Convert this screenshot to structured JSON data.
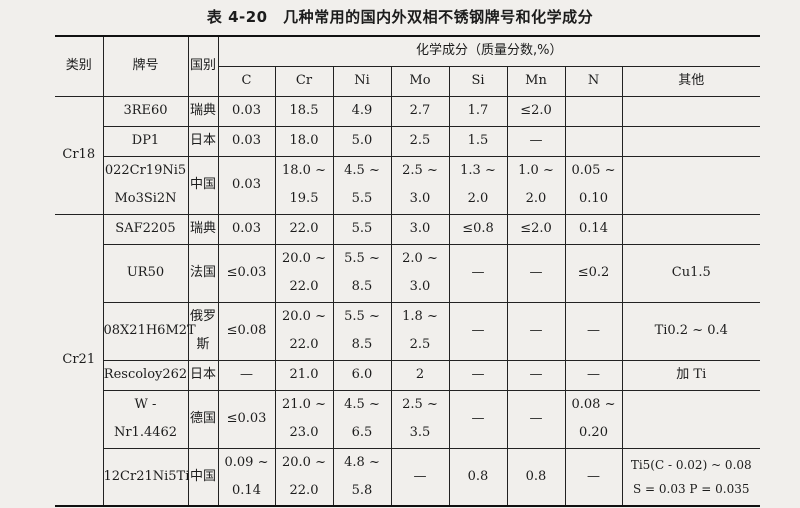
{
  "title": "表 4-20　几种常用的国内外双相不锈钢牌号和化学成分",
  "headers": {
    "category": "类别",
    "grade": "牌号",
    "country": "国别",
    "composition": "化学成分（质量分数,%）",
    "elements": [
      "C",
      "Cr",
      "Ni",
      "Mo",
      "Si",
      "Mn",
      "N",
      "其他"
    ]
  },
  "groups": [
    {
      "category": "Cr18",
      "rows": [
        {
          "grade": [
            "3RE60"
          ],
          "country": [
            "瑞典"
          ],
          "C": [
            "0.03"
          ],
          "Cr": [
            "18.5"
          ],
          "Ni": [
            "4.9"
          ],
          "Mo": [
            "2.7"
          ],
          "Si": [
            "1.7"
          ],
          "Mn": [
            "≤2.0"
          ],
          "N": [
            ""
          ],
          "other": [
            ""
          ]
        },
        {
          "grade": [
            "DP1"
          ],
          "country": [
            "日本"
          ],
          "C": [
            "0.03"
          ],
          "Cr": [
            "18.0"
          ],
          "Ni": [
            "5.0"
          ],
          "Mo": [
            "2.5"
          ],
          "Si": [
            "1.5"
          ],
          "Mn": [
            "—"
          ],
          "N": [
            ""
          ],
          "other": [
            ""
          ]
        },
        {
          "grade": [
            "022Cr19Ni5",
            "Mo3Si2N"
          ],
          "country": [
            "中国"
          ],
          "C": [
            "0.03"
          ],
          "Cr": [
            "18.0 ~",
            "19.5"
          ],
          "Ni": [
            "4.5 ~",
            "5.5"
          ],
          "Mo": [
            "2.5 ~",
            "3.0"
          ],
          "Si": [
            "1.3 ~",
            "2.0"
          ],
          "Mn": [
            "1.0 ~ 2.0"
          ],
          "N": [
            "0.05 ~",
            "0.10"
          ],
          "other": [
            ""
          ]
        }
      ]
    },
    {
      "category": "Cr21",
      "rows": [
        {
          "grade": [
            "SAF2205"
          ],
          "country": [
            "瑞典"
          ],
          "C": [
            "0.03"
          ],
          "Cr": [
            "22.0"
          ],
          "Ni": [
            "5.5"
          ],
          "Mo": [
            "3.0"
          ],
          "Si": [
            "≤0.8"
          ],
          "Mn": [
            "≤2.0"
          ],
          "N": [
            "0.14"
          ],
          "other": [
            ""
          ]
        },
        {
          "grade": [
            "UR50"
          ],
          "country": [
            "法国"
          ],
          "C": [
            "≤0.03"
          ],
          "Cr": [
            "20.0 ~",
            "22.0"
          ],
          "Ni": [
            "5.5 ~",
            "8.5"
          ],
          "Mo": [
            "2.0 ~",
            "3.0"
          ],
          "Si": [
            "—"
          ],
          "Mn": [
            "—"
          ],
          "N": [
            "≤0.2"
          ],
          "other": [
            "Cu1.5"
          ]
        },
        {
          "grade": [
            "08X21H6M2T"
          ],
          "country": [
            "俄罗",
            "斯"
          ],
          "C": [
            "≤0.08"
          ],
          "Cr": [
            "20.0 ~",
            "22.0"
          ],
          "Ni": [
            "5.5 ~",
            "8.5"
          ],
          "Mo": [
            "1.8 ~",
            "2.5"
          ],
          "Si": [
            "—"
          ],
          "Mn": [
            "—"
          ],
          "N": [
            "—"
          ],
          "other": [
            "Ti0.2 ~ 0.4"
          ]
        },
        {
          "grade": [
            "Rescoloy262"
          ],
          "country": [
            "日本"
          ],
          "C": [
            "—"
          ],
          "Cr": [
            "21.0"
          ],
          "Ni": [
            "6.0"
          ],
          "Mo": [
            "2"
          ],
          "Si": [
            "—"
          ],
          "Mn": [
            "—"
          ],
          "N": [
            "—"
          ],
          "other": [
            "加 Ti"
          ]
        },
        {
          "grade": [
            "W - Nr1.4462"
          ],
          "country": [
            "德国"
          ],
          "C": [
            "≤0.03"
          ],
          "Cr": [
            "21.0 ~",
            "23.0"
          ],
          "Ni": [
            "4.5 ~",
            "6.5"
          ],
          "Mo": [
            "2.5 ~",
            "3.5"
          ],
          "Si": [
            "—"
          ],
          "Mn": [
            "—"
          ],
          "N": [
            "0.08 ~",
            "0.20"
          ],
          "other": [
            ""
          ]
        },
        {
          "grade": [
            "12Cr21Ni5Ti"
          ],
          "country": [
            "中国"
          ],
          "C": [
            "0.09 ~",
            "0.14"
          ],
          "Cr": [
            "20.0 ~",
            "22.0"
          ],
          "Ni": [
            "4.8 ~",
            "5.8"
          ],
          "Mo": [
            "—"
          ],
          "Si": [
            "0.8"
          ],
          "Mn": [
            "0.8"
          ],
          "N": [
            "—"
          ],
          "other": [
            "Ti5(C - 0.02) ~ 0.08",
            "S = 0.03  P = 0.035"
          ]
        }
      ]
    }
  ]
}
